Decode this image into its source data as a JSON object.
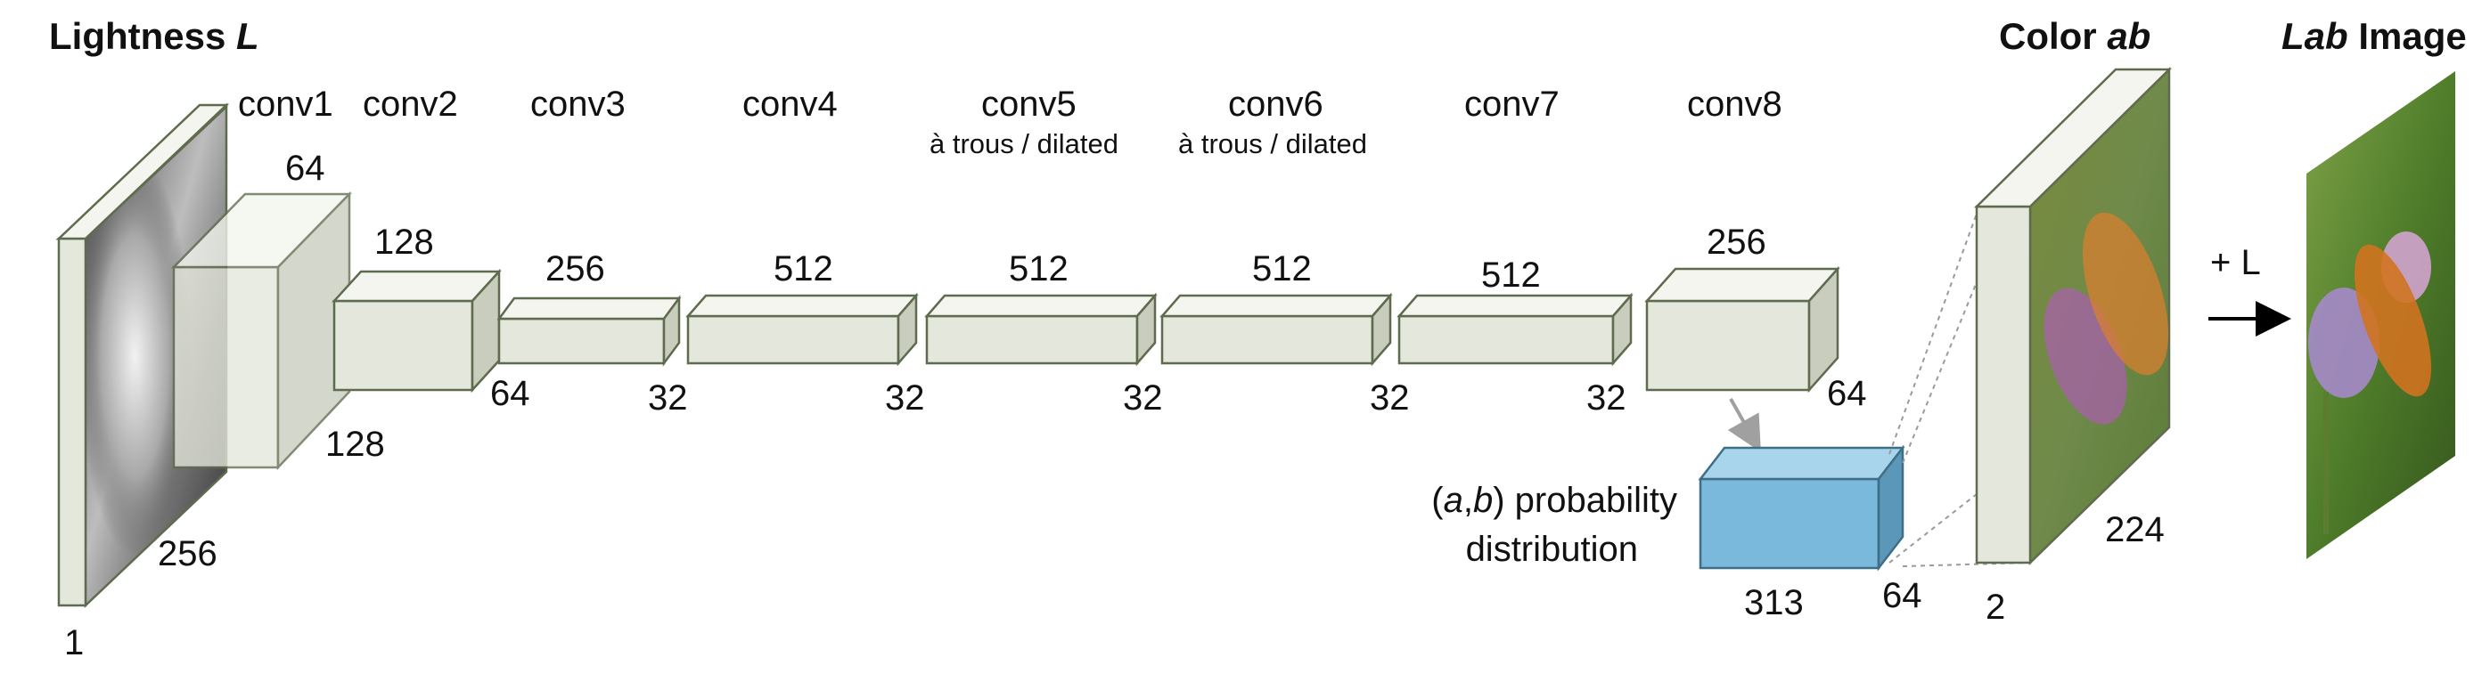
{
  "titles": {
    "input_prefix": "Lightness",
    "input_italic": "L",
    "color_prefix": "Color",
    "color_italic": "ab",
    "lab_italic": "Lab",
    "lab_suffix": " Image"
  },
  "layers": {
    "conv1": "conv1",
    "conv2": "conv2",
    "conv3": "conv3",
    "conv4": "conv4",
    "conv5": "conv5",
    "conv5_sub": "à trous / dilated",
    "conv6": "conv6",
    "conv6_sub": "à trous / dilated",
    "conv7": "conv7",
    "conv8": "conv8"
  },
  "dims": {
    "input_depth": "1",
    "input_size": "256",
    "conv1_ch": "64",
    "conv1_size": "128",
    "conv2_ch": "128",
    "conv2_size": "64",
    "conv3_ch": "256",
    "conv3_size": "32",
    "conv4_ch": "512",
    "conv4_size": "32",
    "conv5_ch": "512",
    "conv5_size": "32",
    "conv6_ch": "512",
    "conv6_size": "32",
    "conv7_ch": "512",
    "conv7_size": "32",
    "conv8_ch": "256",
    "conv8_size": "64",
    "prob_ch": "313",
    "prob_size": "64",
    "ab_depth": "2",
    "ab_size": "224"
  },
  "probability": {
    "open": "(",
    "a": "a",
    "comma": ",",
    "b": "b",
    "close": ")",
    "line1_rest": " probability",
    "line2": "distribution"
  },
  "plus_l": "+ L",
  "colors": {
    "block_front": "#e4e7dc",
    "block_edge": "#5f6b4e",
    "probability_block": "#7ab9dc"
  },
  "icons": {
    "arrow_to_lab": "right-arrow-icon"
  }
}
